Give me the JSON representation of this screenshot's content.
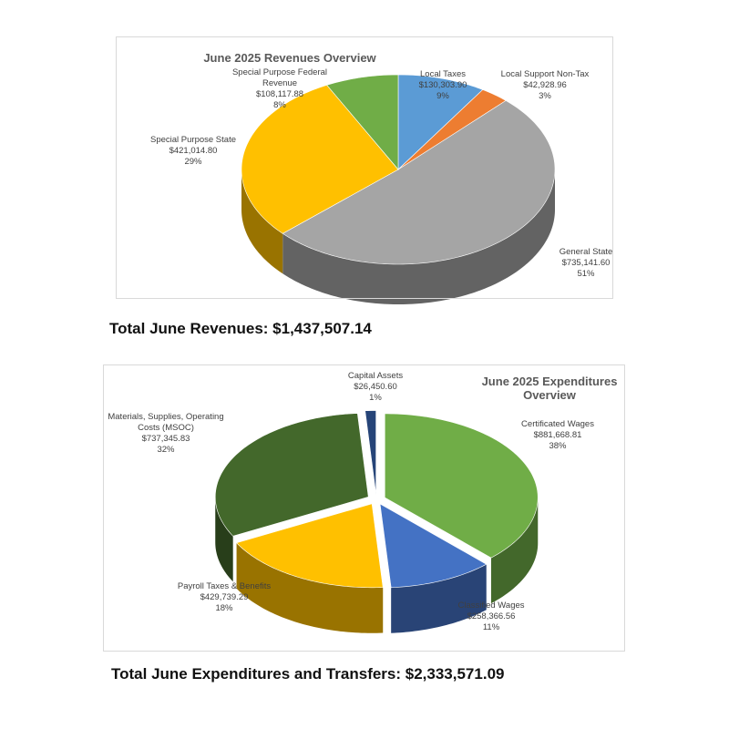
{
  "chart_data": [
    {
      "type": "pie",
      "title": "June 2025 Revenues Overview",
      "categories": [
        "Local Taxes",
        "Local Support Non-Tax",
        "General State",
        "Special Purpose State",
        "Special Purpose Federal Revenue"
      ],
      "values": [
        130303.9,
        42928.96,
        735141.6,
        421014.8,
        108117.88
      ],
      "value_labels": [
        "$130,303.90",
        "$42,928.96",
        "$735,141.60",
        "$421,014.80",
        "$108,117.88"
      ],
      "shares": [
        9,
        3,
        51,
        29,
        8
      ],
      "share_labels": [
        "9%",
        "3%",
        "51%",
        "29%",
        "8%"
      ],
      "colors": [
        "#5b9bd5",
        "#ed7d31",
        "#a5a5a5",
        "#ffc000",
        "#70ad47"
      ],
      "footer": "Total June Revenues: $1,437,507.14"
    },
    {
      "type": "pie",
      "title": "June 2025 Expenditures Overview",
      "categories": [
        "Certificated Wages",
        "Classified Wages",
        "Payroll Taxes & Benefits",
        "Materials, Supplies, Operating Costs (MSOC)",
        "Capital Assets"
      ],
      "values": [
        881668.81,
        258366.56,
        429739.29,
        737345.83,
        26450.6
      ],
      "value_labels": [
        "$881,668.81",
        "$258,366.56",
        "$429,739.29",
        "$737,345.83",
        "$26,450.60"
      ],
      "shares": [
        38,
        11,
        18,
        32,
        1
      ],
      "share_labels": [
        "38%",
        "11%",
        "18%",
        "32%",
        "1%"
      ],
      "colors": [
        "#70ad47",
        "#4472c4",
        "#ffc000",
        "#43682b",
        "#264478"
      ],
      "footer": "Total June Expenditures and Transfers: $2,333,571.09"
    }
  ]
}
